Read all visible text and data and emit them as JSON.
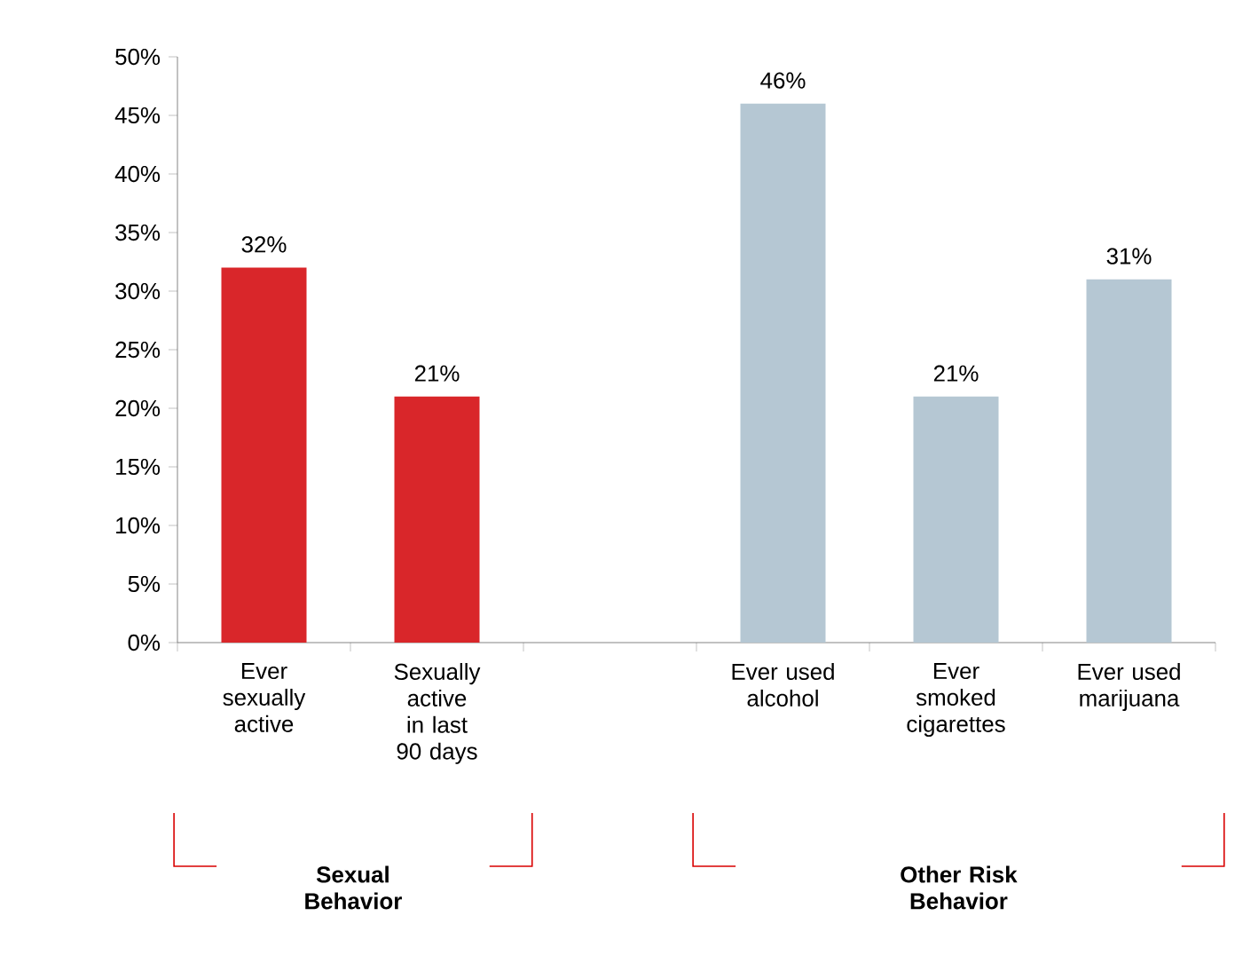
{
  "chart_data": {
    "type": "bar",
    "categories": [
      "Ever sexually active",
      "Sexually active in last 90 days",
      null,
      "Ever used alcohol",
      "Ever smoked cigarettes",
      "Ever used marijuana"
    ],
    "values": [
      32,
      21,
      null,
      46,
      21,
      31
    ],
    "colors": [
      "#d9262a",
      "#d9262a",
      null,
      "#b5c7d3",
      "#b5c7d3",
      "#b5c7d3"
    ],
    "value_labels": [
      "32%",
      "21%",
      null,
      "46%",
      "21%",
      "31%"
    ],
    "ylim": [
      0,
      50
    ],
    "yticks": [
      {
        "value": 0,
        "label": "0%"
      },
      {
        "value": 5,
        "label": "5%"
      },
      {
        "value": 10,
        "label": "10%"
      },
      {
        "value": 15,
        "label": "15%"
      },
      {
        "value": 20,
        "label": "20%"
      },
      {
        "value": 25,
        "label": "25%"
      },
      {
        "value": 30,
        "label": "30%"
      },
      {
        "value": 35,
        "label": "35%"
      },
      {
        "value": 40,
        "label": "40%"
      },
      {
        "value": 45,
        "label": "45%"
      },
      {
        "value": 50,
        "label": "50%"
      }
    ],
    "annotations": [
      "Sexual Behavior",
      "Other Risk Behavior"
    ],
    "grid": false
  }
}
